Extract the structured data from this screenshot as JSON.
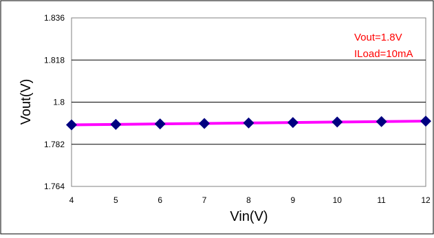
{
  "chart_data": {
    "type": "line",
    "xlabel": "Vin(V)",
    "ylabel": "Vout(V)",
    "xlim": [
      4,
      12
    ],
    "ylim": [
      1.764,
      1.836
    ],
    "x_ticks": [
      "4",
      "5",
      "6",
      "7",
      "8",
      "9",
      "10",
      "11",
      "12"
    ],
    "y_ticks": [
      "1.764",
      "1.782",
      "1.8",
      "1.818",
      "1.836"
    ],
    "grid": "horizontal",
    "annotations": [
      "Vout=1.8V",
      "ILoad=10mA"
    ],
    "series": [
      {
        "x": [
          4,
          5,
          6,
          7,
          8,
          9,
          10,
          11,
          12
        ],
        "y": [
          1.7903,
          1.7905,
          1.7907,
          1.7909,
          1.7911,
          1.7913,
          1.7915,
          1.7917,
          1.7919
        ],
        "line_color": "#ff00ff",
        "marker_color": "#000080",
        "marker": "diamond"
      }
    ]
  },
  "colors": {
    "annotation": "#ff0000",
    "gridline": "#000000",
    "frame": "#000000"
  }
}
